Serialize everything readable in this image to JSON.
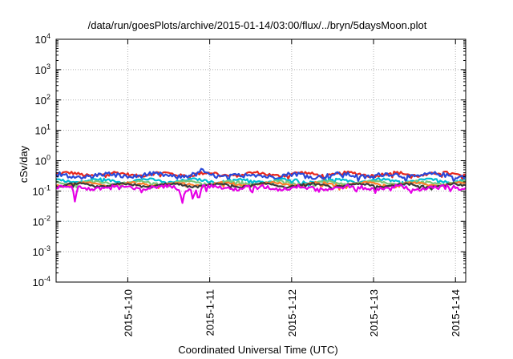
{
  "chart_data": {
    "type": "line",
    "title": "/data/run/goesPlots/archive/2015-01-14/03:00/flux/../bryn/5daysMoon.plot",
    "xlabel": "Coordinated Universal Time (UTC)",
    "ylabel": "cSv/day",
    "y_scale": "log",
    "ylim": [
      0.0001,
      10000
    ],
    "y_ticks": [
      {
        "value": 10000,
        "base": "10",
        "exp": "4"
      },
      {
        "value": 1000,
        "base": "10",
        "exp": "3"
      },
      {
        "value": 100,
        "base": "10",
        "exp": "2"
      },
      {
        "value": 10,
        "base": "10",
        "exp": "1"
      },
      {
        "value": 1,
        "base": "10",
        "exp": "0"
      },
      {
        "value": 0.1,
        "base": "10",
        "exp": "-1"
      },
      {
        "value": 0.01,
        "base": "10",
        "exp": "-2"
      },
      {
        "value": 0.001,
        "base": "10",
        "exp": "-3"
      },
      {
        "value": 0.0001,
        "base": "10",
        "exp": "-4"
      }
    ],
    "xlim": [
      "2015-01-09 03:00",
      "2015-01-14 03:00"
    ],
    "x_ticks": [
      "2015-1-10",
      "2015-1-11",
      "2015-1-12",
      "2015-1-13",
      "2015-1-14"
    ],
    "grid": true,
    "legend": "none",
    "series": [
      {
        "color": "#e8281e",
        "base": 0.36,
        "amp": 0.07,
        "dips": []
      },
      {
        "color": "#2a49d8",
        "base": 0.33,
        "amp": 0.09,
        "dips": [
          {
            "x": 1.78,
            "v": 0.6
          }
        ]
      },
      {
        "color": "#00bcd4",
        "base": 0.22,
        "amp": 0.03,
        "dips": []
      },
      {
        "color": "#7cc87a",
        "base": 0.19,
        "amp": 0.02,
        "dips": []
      },
      {
        "color": "#ff7f2a",
        "base": 0.17,
        "amp": 0.02,
        "dips": []
      },
      {
        "color": "#3a3a3a",
        "base": 0.155,
        "amp": 0.02,
        "dips": []
      },
      {
        "color": "#e600e6",
        "base": 0.13,
        "amp": 0.03,
        "dips": [
          {
            "x": 0.23,
            "v": 0.045
          },
          {
            "x": 1.54,
            "v": 0.04
          },
          {
            "x": 1.67,
            "v": 0.055
          },
          {
            "x": 1.74,
            "v": 0.05
          },
          {
            "x": 2.39,
            "v": 0.085
          },
          {
            "x": 3.66,
            "v": 0.09
          },
          {
            "x": 4.33,
            "v": 0.085
          }
        ]
      }
    ]
  }
}
